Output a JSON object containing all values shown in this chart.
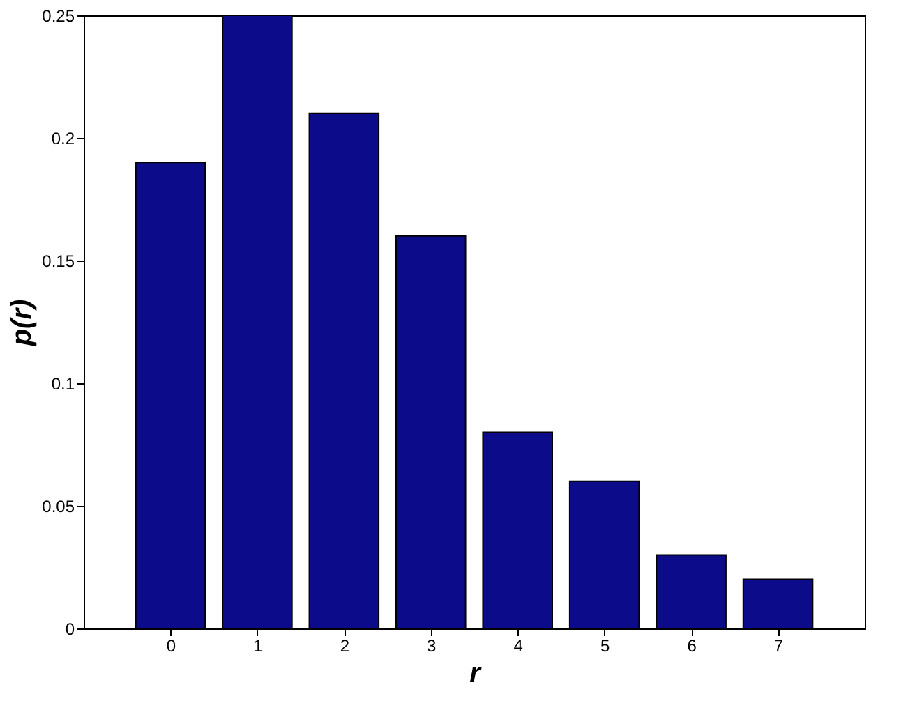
{
  "chart_data": {
    "type": "bar",
    "xlabel": "r",
    "ylabel": "p(r)",
    "x": [
      0,
      1,
      2,
      3,
      4,
      5,
      6,
      7
    ],
    "values": [
      0.19,
      0.25,
      0.21,
      0.16,
      0.08,
      0.06,
      0.03,
      0.02
    ],
    "color": "#0c0c8a",
    "xlim": [
      -1,
      8
    ],
    "xticks": [
      0,
      1,
      2,
      3,
      4,
      5,
      6,
      7
    ],
    "ylim": [
      0,
      0.25
    ],
    "yticks": [
      0,
      0.05,
      0.1,
      0.15,
      0.2,
      0.25
    ],
    "grid": false
  }
}
